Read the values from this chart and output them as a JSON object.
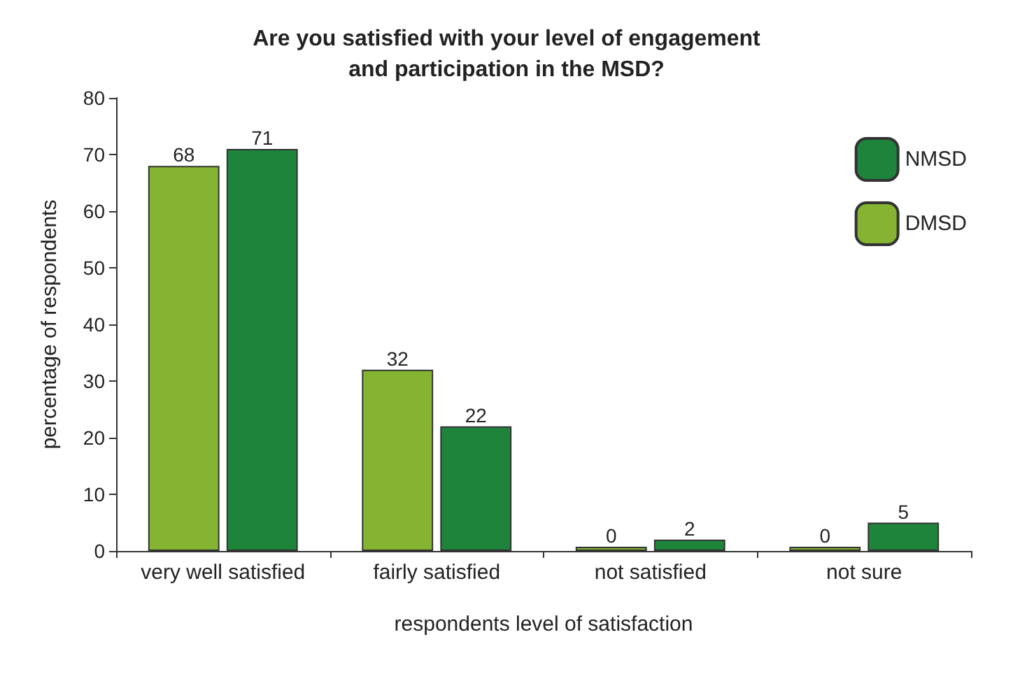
{
  "chart_data": {
    "type": "bar",
    "title": "Are you satisfied with your level of engagement\nand participation in the MSD?",
    "xlabel": "respondents level of satisfaction",
    "ylabel": "percentage of respondents",
    "categories": [
      "very well satisfied",
      "fairly satisfied",
      "not satisfied",
      "not sure"
    ],
    "series": [
      {
        "name": "DMSD",
        "color": "#84b431",
        "values": [
          68,
          32,
          0,
          0
        ]
      },
      {
        "name": "NMSD",
        "color": "#1e843c",
        "values": [
          71,
          22,
          2,
          5
        ]
      }
    ],
    "ylim": [
      0,
      80
    ],
    "yticks": [
      0,
      10,
      20,
      30,
      40,
      50,
      60,
      70,
      80
    ],
    "grid": false,
    "legend": "top right",
    "data_labels": true
  }
}
